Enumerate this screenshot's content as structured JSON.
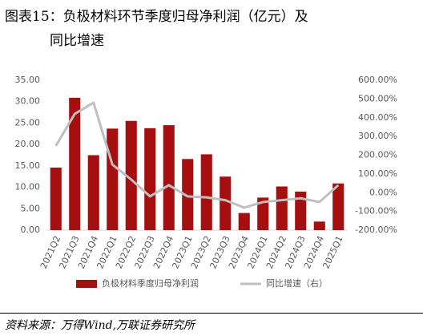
{
  "chart_data": {
    "type": "bar-line",
    "title": "图表15：负极材料环节季度归母净利润（亿元）及同比增速",
    "source": "资料来源：万得Wind,万联证券研究所",
    "categories": [
      "2021Q2",
      "2021Q3",
      "2021Q4",
      "2022Q1",
      "2022Q2",
      "2022Q3",
      "2022Q4",
      "2023Q1",
      "2023Q2",
      "2023Q3",
      "2023Q4",
      "2024Q1",
      "2024Q2",
      "2024Q3",
      "2024Q4",
      "2025Q1"
    ],
    "series": [
      {
        "name": "负极材料季度归母净利润",
        "type": "bar",
        "color": "#a50f0f",
        "values": [
          14.6,
          30.9,
          17.5,
          23.7,
          25.5,
          23.8,
          24.5,
          16.6,
          17.7,
          12.5,
          4.0,
          7.6,
          10.2,
          9.0,
          2.0,
          10.9
        ]
      },
      {
        "name": "同比增速（右）",
        "type": "line",
        "axis": "y2",
        "color": "#bfbfbf",
        "values": [
          250,
          420,
          480,
          150,
          70,
          -20,
          40,
          -20,
          -25,
          -40,
          -80,
          -50,
          -40,
          -30,
          -50,
          40
        ]
      }
    ],
    "ylim": [
      0,
      35
    ],
    "yticks": [
      {
        "value": 0,
        "label": "0.00"
      },
      {
        "value": 5,
        "label": "5.00"
      },
      {
        "value": 10,
        "label": "10.00"
      },
      {
        "value": 15,
        "label": "15.00"
      },
      {
        "value": 20,
        "label": "20.00"
      },
      {
        "value": 25,
        "label": "25.00"
      },
      {
        "value": 30,
        "label": "30.00"
      },
      {
        "value": 35,
        "label": "35.00"
      }
    ],
    "y2lim": [
      -200,
      600
    ],
    "y2ticks": [
      {
        "value": -200,
        "label": "-200.00%"
      },
      {
        "value": -100,
        "label": "-100.00%"
      },
      {
        "value": 0,
        "label": "0.00%"
      },
      {
        "value": 100,
        "label": "100.00%"
      },
      {
        "value": 200,
        "label": "200.00%"
      },
      {
        "value": 300,
        "label": "300.00%"
      },
      {
        "value": 400,
        "label": "400.00%"
      },
      {
        "value": 500,
        "label": "500.00%"
      },
      {
        "value": 600,
        "label": "600.00%"
      }
    ],
    "legend": "bottom"
  }
}
